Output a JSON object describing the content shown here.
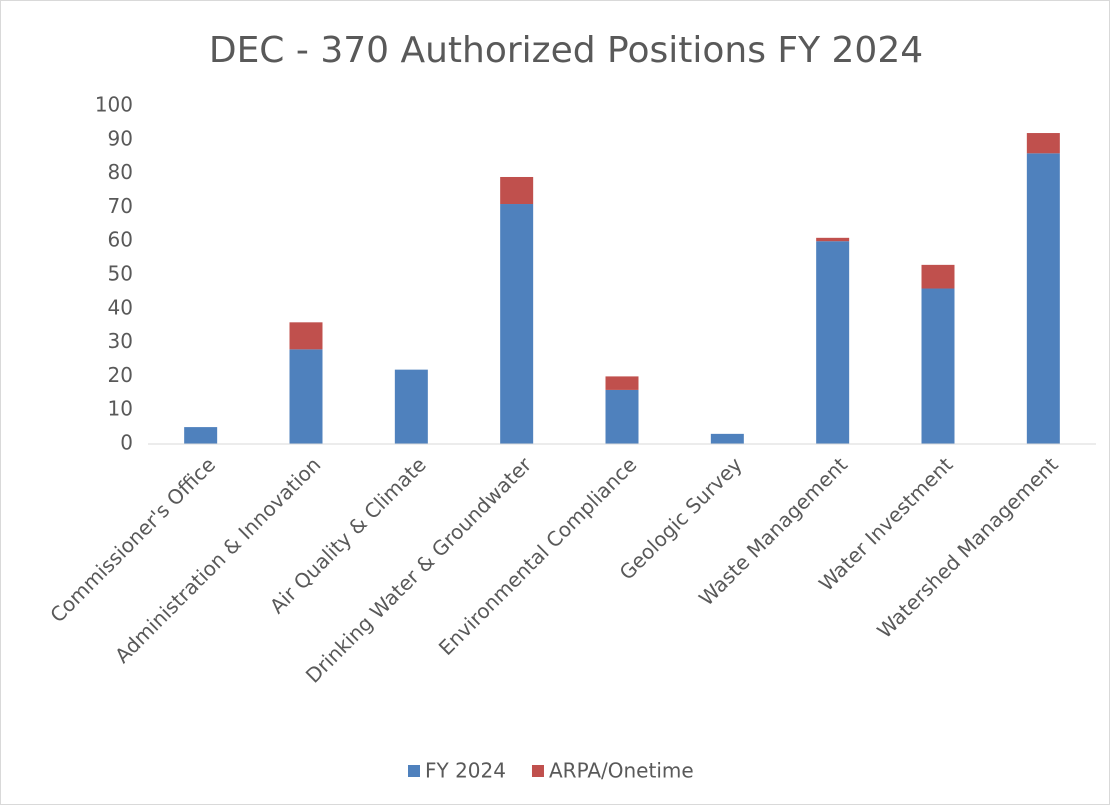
{
  "chart_data": {
    "type": "stacked_bar",
    "title": "DEC - 370 Authorized Positions FY 2024",
    "categories": [
      "Commissioner's Office",
      "Administration & Innovation",
      "Air Quality & Climate",
      "Drinking Water & Groundwater",
      "Environmental Compliance",
      "Geologic Survey",
      "Waste Management",
      "Water Investment",
      "Watershed Management"
    ],
    "series": [
      {
        "name": "FY 2024",
        "color": "#4f81bd",
        "values": [
          5,
          28,
          22,
          71,
          16,
          3,
          60,
          46,
          86
        ]
      },
      {
        "name": "ARPA/Onetime",
        "color": "#c0504d",
        "values": [
          0,
          8,
          0,
          8,
          4,
          0,
          1,
          7,
          6
        ]
      }
    ],
    "ylim": [
      0,
      100
    ],
    "yticks": [
      0,
      10,
      20,
      30,
      40,
      50,
      60,
      70,
      80,
      90,
      100
    ],
    "grid": false,
    "legend": "bottom"
  }
}
